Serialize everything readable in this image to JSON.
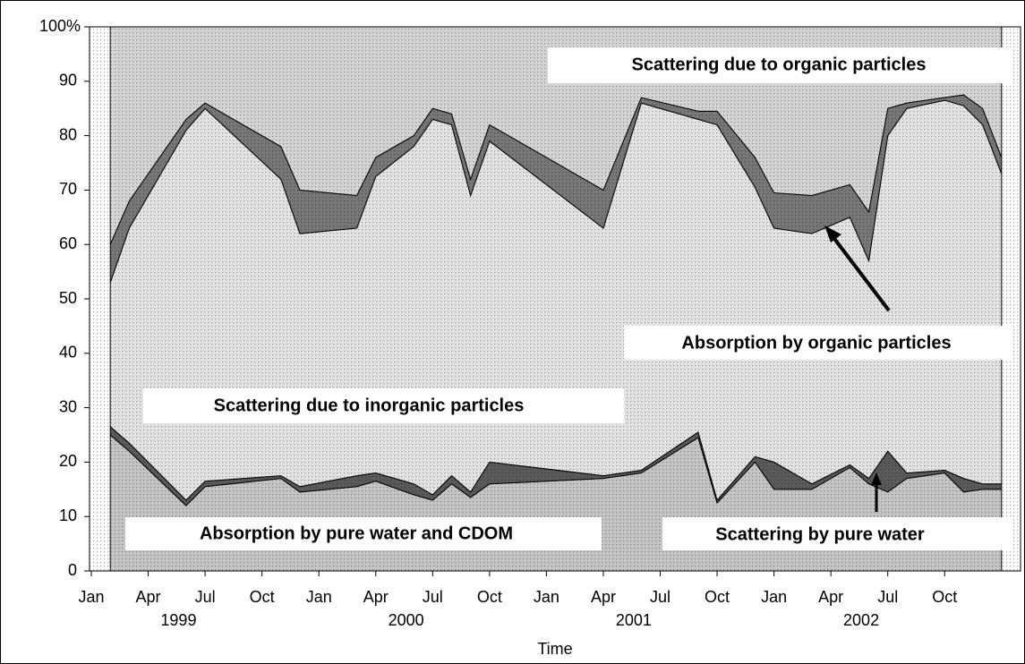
{
  "chart_data": {
    "type": "stacked_area",
    "x_label": "Time",
    "x": [
      "1999-02",
      "1999-03",
      "1999-06",
      "1999-07",
      "1999-11",
      "1999-12",
      "2000-03",
      "2000-04",
      "2000-06",
      "2000-07",
      "2000-08",
      "2000-09",
      "2000-10",
      "2001-04",
      "2001-06",
      "2001-09",
      "2001-10",
      "2001-12",
      "2002-01",
      "2002-03",
      "2002-05",
      "2002-06",
      "2002-07",
      "2002-08",
      "2002-10",
      "2002-11",
      "2002-12",
      "2003-01"
    ],
    "series": [
      {
        "name": "Absorption by pure water and CDOM",
        "color": "#c4c4c4",
        "values": [
          25,
          22,
          12,
          15.5,
          17,
          14.5,
          15.5,
          16.5,
          14,
          13,
          16,
          13.5,
          16,
          17,
          18,
          24.5,
          12.5,
          20,
          15,
          15,
          19,
          16,
          14.5,
          17,
          18,
          14.5,
          15,
          15
        ]
      },
      {
        "name": "Scattering by pure water",
        "color": "#5a5a5a",
        "values": [
          1.5,
          1.5,
          1,
          1,
          0.5,
          1,
          2,
          1.5,
          2,
          1,
          1.5,
          1,
          4,
          0.5,
          0.5,
          1,
          0.5,
          1,
          5,
          1,
          0.5,
          1,
          7.5,
          1,
          0.5,
          2.5,
          1,
          1
        ]
      },
      {
        "name": "Scattering due to inorganic particles",
        "color": "#e2e2e2",
        "values": [
          26.5,
          39.5,
          68,
          68.5,
          54.5,
          46.5,
          45.5,
          54.5,
          62,
          69,
          64.5,
          54.5,
          59,
          45.5,
          67.5,
          57.5,
          69,
          49.5,
          43,
          46,
          45.5,
          40,
          58,
          67,
          68,
          68.5,
          66,
          57
        ]
      },
      {
        "name": "Absorption by organic particles",
        "color": "#777777",
        "values": [
          7,
          5,
          2,
          1,
          6,
          8,
          6,
          3.5,
          2,
          2,
          2,
          3,
          3,
          7,
          1,
          1.5,
          2.5,
          5.5,
          6.5,
          7,
          6,
          9,
          5,
          1,
          0.5,
          2,
          3,
          3
        ]
      },
      {
        "name": "Scattering due to organic particles",
        "color": "#d4d4d4",
        "values": [
          40,
          32,
          17,
          14,
          22,
          30,
          31,
          24,
          20,
          15,
          16,
          28,
          18,
          30,
          13,
          15.5,
          15.5,
          24,
          30.5,
          31,
          29,
          34,
          15,
          14,
          13,
          12.5,
          15,
          24
        ]
      }
    ],
    "xlim": [
      "1999-01",
      "2003-02"
    ],
    "xticks": [
      {
        "value": "1999-01",
        "label": "Jan"
      },
      {
        "value": "1999-04",
        "label": "Apr"
      },
      {
        "value": "1999-07",
        "label": "Jul"
      },
      {
        "value": "1999-10",
        "label": "Oct"
      },
      {
        "value": "2000-01",
        "label": "Jan"
      },
      {
        "value": "2000-04",
        "label": "Apr"
      },
      {
        "value": "2000-07",
        "label": "Jul"
      },
      {
        "value": "2000-10",
        "label": "Oct"
      },
      {
        "value": "2001-01",
        "label": "Jan"
      },
      {
        "value": "2001-04",
        "label": "Apr"
      },
      {
        "value": "2001-07",
        "label": "Jul"
      },
      {
        "value": "2001-10",
        "label": "Oct"
      },
      {
        "value": "2002-01",
        "label": "Jan"
      },
      {
        "value": "2002-04",
        "label": "Apr"
      },
      {
        "value": "2002-07",
        "label": "Jul"
      },
      {
        "value": "2002-10",
        "label": "Oct"
      }
    ],
    "years": [
      "1999",
      "2000",
      "2001",
      "2002"
    ],
    "ylim": [
      0,
      100
    ],
    "yticks": [
      0,
      10,
      20,
      30,
      40,
      50,
      60,
      70,
      80,
      90,
      {
        "value": 100,
        "label": "100%"
      }
    ]
  }
}
